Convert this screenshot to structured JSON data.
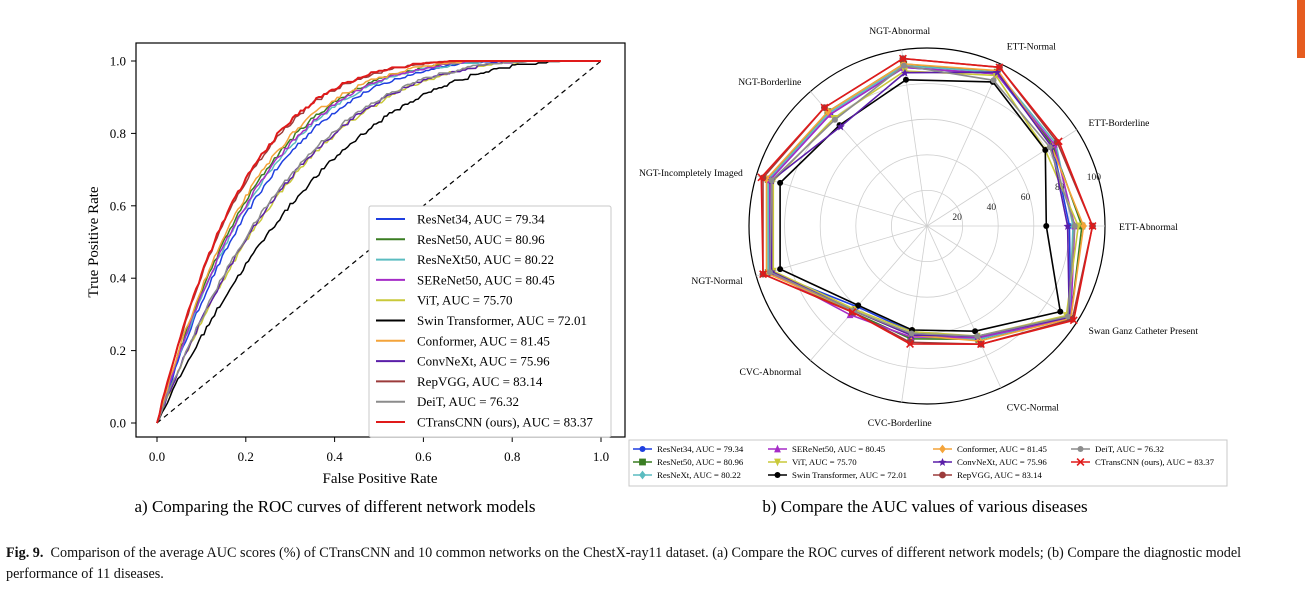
{
  "figure_label": "Fig. 9.",
  "figure_caption": "Comparison of the average AUC scores (%) of CTransCNN and 10 common networks on the ChestX-ray11 dataset. (a) Compare the ROC curves of different network models; (b) Compare the diagnostic model performance of 11 diseases.",
  "chart_data": [
    {
      "type": "line",
      "subtitle": "a) Comparing the ROC curves of different network models",
      "xlabel": "False Positive Rate",
      "ylabel": "True Positive Rate",
      "xlim": [
        0,
        1
      ],
      "ylim": [
        0,
        1
      ],
      "x_ticks": [
        "0.0",
        "0.2",
        "0.4",
        "0.6",
        "0.8",
        "1.0"
      ],
      "y_ticks": [
        "0.0",
        "0.2",
        "0.4",
        "0.6",
        "0.8",
        "1.0"
      ],
      "grid": false,
      "legend_position": "lower-right",
      "diagonal": "dashed black chance line",
      "series": [
        {
          "name": "ResNet34, AUC = 79.34",
          "auc": 79.34,
          "color": "#1f3fe0"
        },
        {
          "name": "ResNet50, AUC = 80.96",
          "auc": 80.96,
          "color": "#3a7d22"
        },
        {
          "name": "ResNeXt50, AUC = 80.22",
          "auc": 80.22,
          "color": "#5bbcc0"
        },
        {
          "name": "SEReNet50, AUC = 80.45",
          "auc": 80.45,
          "color": "#a52cc7"
        },
        {
          "name": "ViT, AUC = 75.70",
          "auc": 75.7,
          "color": "#c9c93a"
        },
        {
          "name": "Swin Transformer, AUC = 72.01",
          "auc": 72.01,
          "color": "#000000"
        },
        {
          "name": "Conformer, AUC = 81.45",
          "auc": 81.45,
          "color": "#f4a43a"
        },
        {
          "name": "ConvNeXt, AUC = 75.96",
          "auc": 75.96,
          "color": "#5a1ea8"
        },
        {
          "name": "RepVGG, AUC = 83.14",
          "auc": 83.14,
          "color": "#9c3b3b"
        },
        {
          "name": "DeiT, AUC = 76.32",
          "auc": 76.32,
          "color": "#8c8c8c"
        },
        {
          "name": "CTransCNN (ours), AUC = 83.37",
          "auc": 83.37,
          "color": "#e01a1a"
        }
      ]
    },
    {
      "type": "radar",
      "subtitle": "b) Compare the AUC values of various diseases",
      "radial_ticks": [
        "20",
        "40",
        "60",
        "80",
        "100"
      ],
      "radial_range": [
        0,
        100
      ],
      "categories": [
        "ETT-Abnormal",
        "ETT-Borderline",
        "ETT-Normal",
        "NGT-Abnormal",
        "NGT-Borderline",
        "NGT-Incompletely Imaged",
        "NGT-Normal",
        "CVC-Abnormal",
        "CVC-Borderline",
        "CVC-Normal",
        "Swan Ganz Catheter Present"
      ],
      "legend_position": "bottom",
      "series": [
        {
          "name": "ResNet34, AUC = 79.34",
          "color": "#1f3fe0",
          "marker": "circle",
          "values": [
            80,
            84,
            94,
            90,
            83,
            92,
            92,
            60,
            60,
            69,
            96
          ]
        },
        {
          "name": "ResNet50, AUC = 80.96",
          "color": "#3a7d22",
          "marker": "square",
          "values": [
            87,
            84,
            95,
            92,
            85,
            93,
            93,
            64,
            64,
            70,
            96
          ]
        },
        {
          "name": "ResNeXt, AUC = 80.22",
          "color": "#5bbcc0",
          "marker": "diamond",
          "values": [
            82,
            86,
            95,
            91,
            84,
            93,
            93,
            63,
            62,
            70,
            95
          ]
        },
        {
          "name": "SEReNet50, AUC = 80.45",
          "color": "#a52cc7",
          "marker": "triangle",
          "values": [
            83,
            85,
            94,
            90,
            83,
            92,
            92,
            66,
            63,
            69,
            96
          ]
        },
        {
          "name": "ViT, AUC = 75.70",
          "color": "#c9c93a",
          "marker": "triangle-down",
          "values": [
            85,
            79,
            93,
            88,
            80,
            90,
            90,
            62,
            60,
            68,
            93
          ]
        },
        {
          "name": "Swin Transformer, AUC = 72.01",
          "color": "#000000",
          "marker": "circle",
          "values": [
            67,
            79,
            89,
            83,
            75,
            86,
            86,
            59,
            59,
            65,
            89
          ]
        },
        {
          "name": "Conformer, AUC = 81.45",
          "color": "#f4a43a",
          "marker": "diamond",
          "values": [
            88,
            83,
            96,
            92,
            85,
            94,
            94,
            63,
            62,
            71,
            96
          ]
        },
        {
          "name": "ConvNeXt, AUC = 75.96",
          "color": "#5a1ea8",
          "marker": "star",
          "values": [
            79,
            83,
            95,
            87,
            74,
            91,
            91,
            63,
            62,
            68,
            95
          ]
        },
        {
          "name": "RepVGG, AUC = 83.14",
          "color": "#9c3b3b",
          "marker": "hexagon",
          "values": [
            93,
            87,
            98,
            95,
            88,
            96,
            96,
            64,
            66,
            73,
            97
          ]
        },
        {
          "name": "DeiT, AUC = 76.32",
          "color": "#8c8c8c",
          "marker": "circle",
          "values": [
            83,
            82,
            90,
            91,
            79,
            91,
            92,
            63,
            61,
            68,
            94
          ]
        },
        {
          "name": "CTransCNN (ours), AUC = 83.37",
          "color": "#e01a1a",
          "marker": "x",
          "values": [
            93,
            88,
            98,
            95,
            88,
            97,
            96,
            64,
            67,
            73,
            98
          ]
        }
      ]
    }
  ]
}
